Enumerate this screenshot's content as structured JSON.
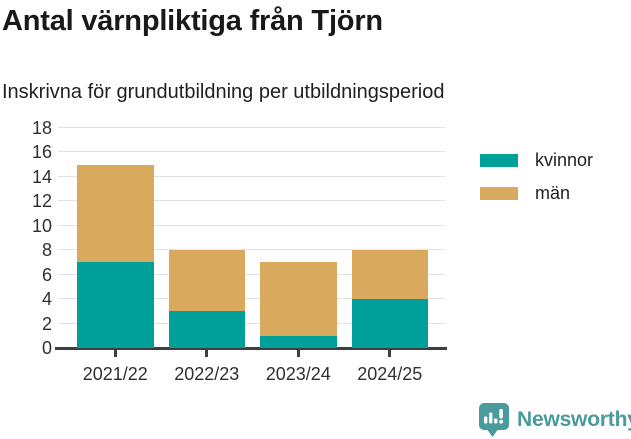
{
  "header": {
    "title": "Antal värnpliktiga från Tjörn",
    "subtitle": "Inskrivna för grundutbildning per utbildningsperiod"
  },
  "chart_data": {
    "type": "bar",
    "stacked": true,
    "title": "Antal värnpliktiga från Tjörn",
    "subtitle": "Inskrivna för grundutbildning per utbildningsperiod",
    "categories": [
      "2021/22",
      "2022/23",
      "2023/24",
      "2024/25"
    ],
    "series": [
      {
        "name": "kvinnor",
        "color": "#00A09A",
        "values": [
          7,
          3,
          1,
          4
        ]
      },
      {
        "name": "män",
        "color": "#D9AA5D",
        "values": [
          8,
          5,
          6,
          4
        ]
      }
    ],
    "xlabel": "",
    "ylabel": "",
    "ylim": [
      0,
      18
    ],
    "yticks": [
      0,
      2,
      4,
      6,
      8,
      10,
      12,
      14,
      16,
      18
    ],
    "grid": true,
    "grid_color": "#E2E2E2",
    "axis_color": "#3E3E3E",
    "tick_label_color": "#303030",
    "legend_position": "right"
  },
  "footer": {
    "brand": "Newsworthy",
    "brand_color": "#4A9B9B"
  }
}
